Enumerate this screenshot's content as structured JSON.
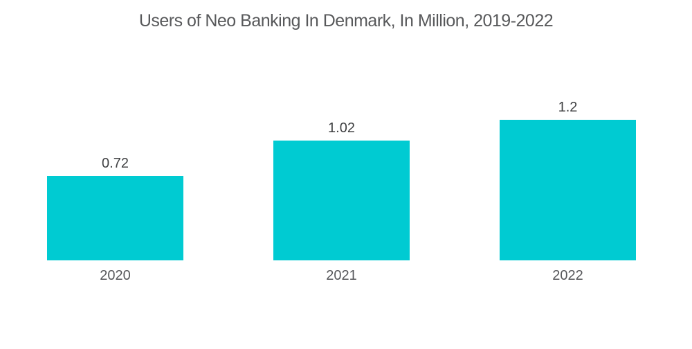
{
  "chart_data": {
    "type": "bar",
    "title": "Users of Neo Banking In Denmark, In Million, 2019-2022",
    "categories": [
      "2020",
      "2021",
      "2022"
    ],
    "values": [
      0.72,
      1.02,
      1.2
    ],
    "value_labels": [
      "0.72",
      "1.02",
      "1.2"
    ],
    "xlabel": "",
    "ylabel": "",
    "ylim": [
      0,
      1.2
    ],
    "grid": false,
    "axes_visible": false,
    "legend_position": "none",
    "colors": {
      "bar": "#00CBD2",
      "title": "#58595B",
      "value_label": "#3F4042",
      "category_label": "#56575A",
      "background": "#FFFFFF"
    }
  }
}
